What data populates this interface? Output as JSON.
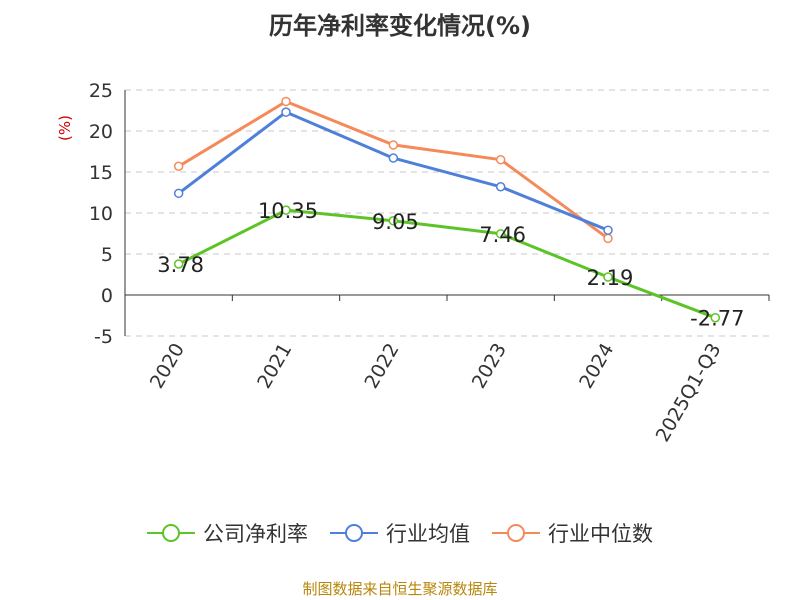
{
  "chart_data": {
    "type": "line",
    "title": "历年净利率变化情况(%)",
    "y_unit_label": "(%)",
    "categories": [
      "2020",
      "2021",
      "2022",
      "2023",
      "2024",
      "2025Q1-Q3"
    ],
    "ylim": [
      -5,
      25
    ],
    "yticks": [
      -5,
      0,
      5,
      10,
      15,
      20,
      25
    ],
    "grid": true,
    "legend_position": "bottom",
    "series": [
      {
        "name": "公司净利率",
        "color": "#5cc427",
        "values": [
          3.78,
          10.35,
          9.05,
          7.46,
          2.19,
          -2.77
        ],
        "labels": [
          "3.78",
          "10.35",
          "9.05",
          "7.46",
          "2.19",
          "-2.77"
        ]
      },
      {
        "name": "行业均值",
        "color": "#4f80d9",
        "values": [
          12.4,
          22.3,
          16.7,
          13.2,
          7.9,
          null
        ]
      },
      {
        "name": "行业中位数",
        "color": "#f5895a",
        "values": [
          15.7,
          23.6,
          18.3,
          16.5,
          6.9,
          null
        ]
      }
    ]
  },
  "source_note": "制图数据来自恒生聚源数据库"
}
